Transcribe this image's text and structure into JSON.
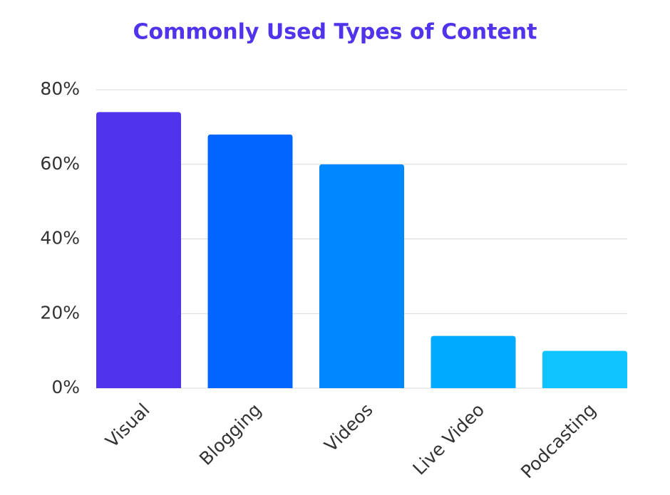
{
  "chart_data": {
    "type": "bar",
    "title": "Commonly Used Types of Content",
    "categories": [
      "Visual",
      "Blogging",
      "Videos",
      "Live Video",
      "Podcasting"
    ],
    "values": [
      74,
      68,
      60,
      14,
      10
    ],
    "colors": [
      "#5034ec",
      "#0066ff",
      "#0088ff",
      "#00aaff",
      "#10c4ff"
    ],
    "ylim": [
      0,
      80
    ],
    "yticks": [
      {
        "value": 0,
        "label": "0%"
      },
      {
        "value": 20,
        "label": "20%"
      },
      {
        "value": 40,
        "label": "40%"
      },
      {
        "value": 60,
        "label": "60%"
      },
      {
        "value": 80,
        "label": "80%"
      }
    ],
    "grid": true
  }
}
